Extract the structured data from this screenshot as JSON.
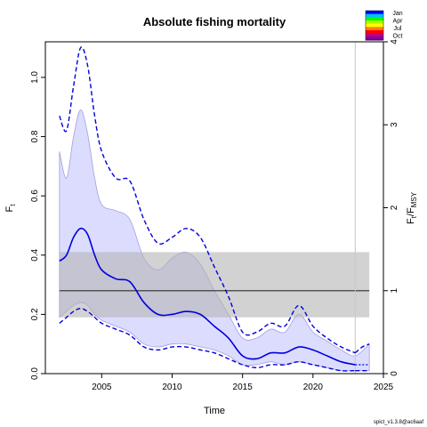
{
  "chart_data": {
    "type": "line",
    "title": "Absolute fishing mortality",
    "xlabel": "Time",
    "ylabel": "F_t",
    "ylabel_main": "F",
    "ylabel_sub": "t",
    "ylabel_right": "F_t/F_MSY",
    "xlim": [
      2001,
      2025
    ],
    "ylim": [
      0,
      1.12
    ],
    "ylim_right": [
      0,
      4.0
    ],
    "x_ticks": [
      2005,
      2010,
      2015,
      2020,
      2025
    ],
    "y_ticks": [
      0.0,
      0.2,
      0.4,
      0.6,
      0.8,
      1.0
    ],
    "y_ticks_right": [
      0,
      1,
      2,
      3,
      4
    ],
    "fmsy": {
      "value": 0.28,
      "ci": [
        0.19,
        0.41
      ]
    },
    "vline_x": 2023,
    "estimate": {
      "x": [
        2002.0,
        2002.5,
        2003.0,
        2003.5,
        2004.0,
        2004.5,
        2005.0,
        2006.0,
        2007.0,
        2008.0,
        2009.0,
        2010.0,
        2011.0,
        2012.0,
        2013.0,
        2014.0,
        2015.0,
        2016.0,
        2017.0,
        2018.0,
        2019.0,
        2020.0,
        2021.0,
        2022.0,
        2023.0
      ],
      "values": [
        0.38,
        0.4,
        0.46,
        0.49,
        0.47,
        0.4,
        0.35,
        0.32,
        0.31,
        0.24,
        0.2,
        0.2,
        0.21,
        0.2,
        0.16,
        0.12,
        0.06,
        0.05,
        0.07,
        0.07,
        0.09,
        0.08,
        0.06,
        0.04,
        0.03
      ]
    },
    "lower_ci": {
      "x": [
        2002.0,
        2002.5,
        2003.0,
        2003.5,
        2004.0,
        2004.5,
        2005.0,
        2006.0,
        2007.0,
        2008.0,
        2009.0,
        2010.0,
        2011.0,
        2012.0,
        2013.0,
        2014.0,
        2015.0,
        2016.0,
        2017.0,
        2018.0,
        2019.0,
        2020.0,
        2021.0,
        2022.0,
        2023.0
      ],
      "values": [
        0.17,
        0.19,
        0.21,
        0.22,
        0.21,
        0.19,
        0.17,
        0.15,
        0.13,
        0.09,
        0.08,
        0.09,
        0.09,
        0.08,
        0.07,
        0.05,
        0.03,
        0.02,
        0.03,
        0.03,
        0.04,
        0.03,
        0.02,
        0.01,
        0.01
      ]
    },
    "upper_ci": {
      "x": [
        2002.0,
        2002.5,
        2003.0,
        2003.5,
        2004.0,
        2004.5,
        2005.0,
        2006.0,
        2007.0,
        2008.0,
        2009.0,
        2010.0,
        2011.0,
        2012.0,
        2013.0,
        2014.0,
        2015.0,
        2016.0,
        2017.0,
        2018.0,
        2019.0,
        2020.0,
        2021.0,
        2022.0,
        2023.0
      ],
      "values": [
        0.87,
        0.82,
        0.97,
        1.1,
        1.04,
        0.87,
        0.75,
        0.66,
        0.65,
        0.52,
        0.44,
        0.46,
        0.49,
        0.46,
        0.36,
        0.26,
        0.14,
        0.14,
        0.17,
        0.16,
        0.23,
        0.16,
        0.12,
        0.09,
        0.07
      ]
    },
    "band_inner": {
      "x": [
        2002.0,
        2002.5,
        2003.0,
        2003.5,
        2004.0,
        2004.5,
        2005.0,
        2006.0,
        2007.0,
        2008.0,
        2009.0,
        2010.0,
        2011.0,
        2012.0,
        2013.0,
        2014.0,
        2015.0,
        2016.0,
        2017.0,
        2018.0,
        2019.0,
        2020.0,
        2021.0,
        2022.0,
        2023.0,
        2024.0
      ],
      "upper": [
        0.75,
        0.66,
        0.8,
        0.89,
        0.81,
        0.66,
        0.57,
        0.55,
        0.52,
        0.39,
        0.35,
        0.39,
        0.41,
        0.37,
        0.28,
        0.2,
        0.12,
        0.12,
        0.15,
        0.14,
        0.2,
        0.14,
        0.11,
        0.08,
        0.06,
        0.1
      ],
      "lower": [
        0.19,
        0.21,
        0.23,
        0.24,
        0.23,
        0.2,
        0.18,
        0.16,
        0.14,
        0.1,
        0.09,
        0.1,
        0.1,
        0.09,
        0.08,
        0.06,
        0.03,
        0.03,
        0.04,
        0.03,
        0.04,
        0.03,
        0.02,
        0.01,
        0.01,
        0.01
      ]
    },
    "forecast": {
      "x": [
        2023.0,
        2023.5,
        2024.0
      ],
      "values": [
        0.03,
        0.03,
        0.03
      ],
      "upper": [
        0.07,
        0.09,
        0.1
      ],
      "lower": [
        0.01,
        0.01,
        0.01
      ]
    },
    "legend": {
      "placement": "top-right",
      "entries": [
        "Jan",
        "Apr",
        "Jul",
        "Oct"
      ]
    },
    "colors": {
      "estimate": "#0000dd",
      "band": "#dcdcff",
      "band_edge": "#a0a0e0",
      "fmsy_band": "#b4b4b4",
      "fmsy_line": "#555555"
    }
  },
  "footer_note": "spict_v1.3.8@ac6aaf"
}
